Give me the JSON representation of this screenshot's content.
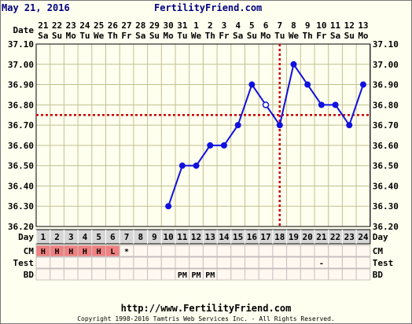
{
  "header": {
    "date": "May 21, 2016",
    "site": "FertilityFriend.com"
  },
  "footer": {
    "url": "http://www.FertilityFriend.com",
    "copyright": "Copyright 1998-2016 Tamtris Web Services Inc. - All Rights Reserved."
  },
  "row_labels": {
    "date": "Date",
    "day": "Day",
    "cm": "CM",
    "test": "Test",
    "bd": "BD"
  },
  "dates": [
    "21",
    "22",
    "23",
    "24",
    "25",
    "26",
    "27",
    "28",
    "29",
    "30",
    "31",
    "1",
    "2",
    "3",
    "4",
    "5",
    "6",
    "7",
    "8",
    "9",
    "10",
    "11",
    "12",
    "13"
  ],
  "weekdays": [
    "Sa",
    "Su",
    "Mo",
    "Tu",
    "We",
    "Th",
    "Fr",
    "Sa",
    "Su",
    "Mo",
    "Tu",
    "We",
    "Th",
    "Fr",
    "Sa",
    "Su",
    "Mo",
    "Tu",
    "We",
    "Th",
    "Fr",
    "Sa",
    "Su",
    "Mo"
  ],
  "cycle_days": [
    "1",
    "2",
    "3",
    "4",
    "5",
    "6",
    "7",
    "8",
    "9",
    "10",
    "11",
    "12",
    "13",
    "14",
    "15",
    "16",
    "17",
    "18",
    "19",
    "20",
    "21",
    "22",
    "23",
    "24"
  ],
  "cm": [
    "H",
    "H",
    "H",
    "H",
    "H",
    "L",
    "*",
    "",
    "",
    "",
    "",
    "",
    "",
    "",
    "",
    "",
    "",
    "",
    "",
    "",
    "",
    "",
    "",
    ""
  ],
  "test": [
    "",
    "",
    "",
    "",
    "",
    "",
    "",
    "",
    "",
    "",
    "",
    "",
    "",
    "",
    "",
    "",
    "",
    "",
    "",
    "",
    "-",
    "",
    "",
    ""
  ],
  "bd": [
    "",
    "",
    "",
    "",
    "",
    "",
    "",
    "",
    "",
    "",
    "PM",
    "PM",
    "PM",
    "",
    "",
    "",
    "",
    "",
    "",
    "",
    "",
    "",
    "",
    ""
  ],
  "colors": {
    "line": "#1010e0",
    "coverline": "#cc0000",
    "period": "#f08080",
    "header_text": "#000080",
    "grid": "#c0c090",
    "chart_bg": "#fffff0",
    "day_row_bg": "#d6d6d6"
  },
  "chart_data": {
    "type": "line",
    "title": "",
    "xlabel": "Day",
    "ylabel": "",
    "x": [
      1,
      2,
      3,
      4,
      5,
      6,
      7,
      8,
      9,
      10,
      11,
      12,
      13,
      14,
      15,
      16,
      17,
      18,
      19,
      20,
      21,
      22,
      23,
      24
    ],
    "ylim": [
      36.2,
      37.1
    ],
    "yticks": [
      "37.10",
      "37.00",
      "36.90",
      "36.80",
      "36.70",
      "36.60",
      "36.50",
      "36.40",
      "36.30",
      "36.20"
    ],
    "series": [
      {
        "values": [
          null,
          null,
          null,
          null,
          null,
          null,
          null,
          null,
          null,
          36.3,
          36.5,
          36.5,
          36.6,
          36.6,
          36.7,
          36.9,
          36.8,
          36.7,
          37.0,
          36.9,
          36.8,
          36.8,
          36.7,
          36.9
        ],
        "open_points": [
          17
        ]
      }
    ],
    "coverline": 36.75,
    "ovulation_day": 18,
    "grid": true
  }
}
